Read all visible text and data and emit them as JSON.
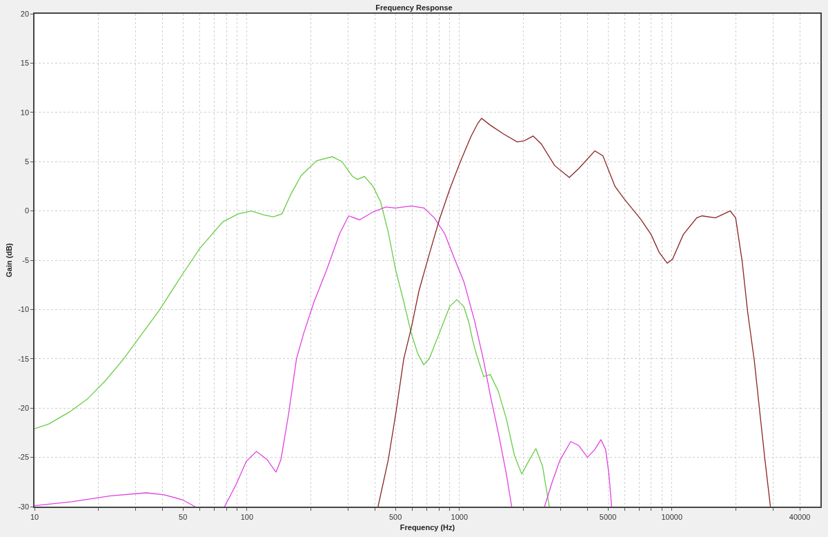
{
  "chart_data": {
    "type": "line",
    "title": "Frequency Response",
    "xlabel": "Frequency (Hz)",
    "ylabel": "Gain (dB)",
    "log": "x",
    "grid": true,
    "xlim": [
      10,
      50000
    ],
    "xticks": [
      10,
      {
        "value": 20,
        "label": null
      },
      {
        "value": 30,
        "label": null
      },
      {
        "value": 40,
        "label": null
      },
      50,
      {
        "value": 60,
        "label": null
      },
      {
        "value": 70,
        "label": null
      },
      {
        "value": 80,
        "label": null
      },
      {
        "value": 90,
        "label": null
      },
      100,
      {
        "value": 200,
        "label": null
      },
      {
        "value": 300,
        "label": null
      },
      {
        "value": 400,
        "label": null
      },
      500,
      {
        "value": 600,
        "label": null
      },
      {
        "value": 700,
        "label": null
      },
      {
        "value": 800,
        "label": null
      },
      {
        "value": 900,
        "label": null
      },
      1000,
      {
        "value": 2000,
        "label": null
      },
      {
        "value": 3000,
        "label": null
      },
      {
        "value": 4000,
        "label": null
      },
      5000,
      {
        "value": 6000,
        "label": null
      },
      {
        "value": 7000,
        "label": null
      },
      {
        "value": 8000,
        "label": null
      },
      {
        "value": 9000,
        "label": null
      },
      10000,
      {
        "value": 20000,
        "label": null
      },
      {
        "value": 30000,
        "label": null
      },
      40000
    ],
    "ylim": [
      -30,
      20
    ],
    "yticks": [
      -30,
      -25,
      -20,
      -15,
      -10,
      -5,
      0,
      5,
      10,
      15,
      20
    ],
    "series": [
      {
        "color": "#66cc44",
        "x": [
          10,
          11.7,
          14.6,
          17.7,
          21.6,
          26.3,
          31.7,
          38.6,
          49.8,
          60,
          77,
          91,
          105,
          120,
          133,
          146,
          161,
          180,
          213,
          252,
          280,
          314,
          331,
          357,
          392,
          426,
          463,
          501,
          547,
          593,
          637,
          679,
          721,
          804,
          900,
          971,
          1048,
          1107,
          1156,
          1208,
          1300,
          1397,
          1524,
          1663,
          1815,
          1965,
          2128,
          2290,
          2461,
          2649
        ],
        "values": [
          -22.1,
          -21.6,
          -20.4,
          -19.1,
          -17.2,
          -15.0,
          -12.6,
          -10.1,
          -6.4,
          -3.8,
          -1.1,
          -0.3,
          0.0,
          -0.4,
          -0.6,
          -0.3,
          1.7,
          3.6,
          5.1,
          5.5,
          5.0,
          3.5,
          3.2,
          3.5,
          2.5,
          0.9,
          -2.2,
          -6.0,
          -9.2,
          -12.4,
          -14.5,
          -15.6,
          -15.0,
          -12.4,
          -9.7,
          -9.0,
          -9.7,
          -11.3,
          -13.2,
          -14.7,
          -16.8,
          -16.6,
          -18.3,
          -21.1,
          -24.8,
          -26.7,
          -25.3,
          -24.1,
          -25.9,
          -30
        ]
      },
      {
        "color": "#e040e0",
        "x": [
          10,
          15,
          22.8,
          33.6,
          40.8,
          49.6,
          57,
          67,
          78.4,
          88.7,
          99.3,
          110.8,
          124,
          137,
          144.6,
          157,
          171,
          185,
          207,
          237,
          273,
          301,
          339,
          392,
          450,
          500,
          593,
          681,
          762,
          852,
          950,
          1050,
          1180,
          1300,
          1397,
          1524,
          1663,
          1762,
          2100,
          2515,
          2723,
          2971,
          3340,
          3643,
          4006,
          4339,
          4634,
          4875,
          5055,
          5203
        ],
        "values": [
          -29.9,
          -29.5,
          -28.9,
          -28.6,
          -28.8,
          -29.3,
          -30,
          null,
          -30,
          -27.8,
          -25.4,
          -24.4,
          -25.2,
          -26.5,
          -25.2,
          -20.6,
          -15.0,
          -12.4,
          -9.2,
          -6.0,
          -2.3,
          -0.5,
          -0.9,
          -0.1,
          0.4,
          0.3,
          0.5,
          0.3,
          -0.7,
          -2.3,
          -4.9,
          -7.2,
          -11.2,
          -15.2,
          -18.7,
          -22.5,
          -26.7,
          -30,
          null,
          -30,
          -27.6,
          -25.3,
          -23.4,
          -23.8,
          -25.0,
          -24.2,
          -23.2,
          -24.2,
          -26.7,
          -30
        ]
      },
      {
        "color": "#8b2323",
        "x": [
          414,
          463,
          503,
          547,
          593,
          645,
          721,
          804,
          900,
          1010,
          1130,
          1221,
          1271,
          1397,
          1616,
          1868,
          2009,
          2223,
          2427,
          2806,
          3290,
          3643,
          4339,
          4732,
          5394,
          5970,
          7115,
          7986,
          8710,
          9510,
          10070,
          11310,
          13090,
          13870,
          16040,
          18800,
          19950,
          21440,
          22710,
          24430,
          25890,
          27430,
          29090
        ],
        "values": [
          -30,
          -25.2,
          -20.4,
          -15.0,
          -11.9,
          -8.1,
          -4.4,
          -0.9,
          2.2,
          5.0,
          7.5,
          8.9,
          9.4,
          8.7,
          7.8,
          7.0,
          7.1,
          7.6,
          6.8,
          4.6,
          3.4,
          4.3,
          6.1,
          5.6,
          2.5,
          1.2,
          -0.8,
          -2.4,
          -4.2,
          -5.3,
          -4.9,
          -2.4,
          -0.7,
          -0.5,
          -0.7,
          0.0,
          -0.7,
          -5.2,
          -10.2,
          -15.2,
          -20.3,
          -25.3,
          -30
        ]
      }
    ]
  }
}
